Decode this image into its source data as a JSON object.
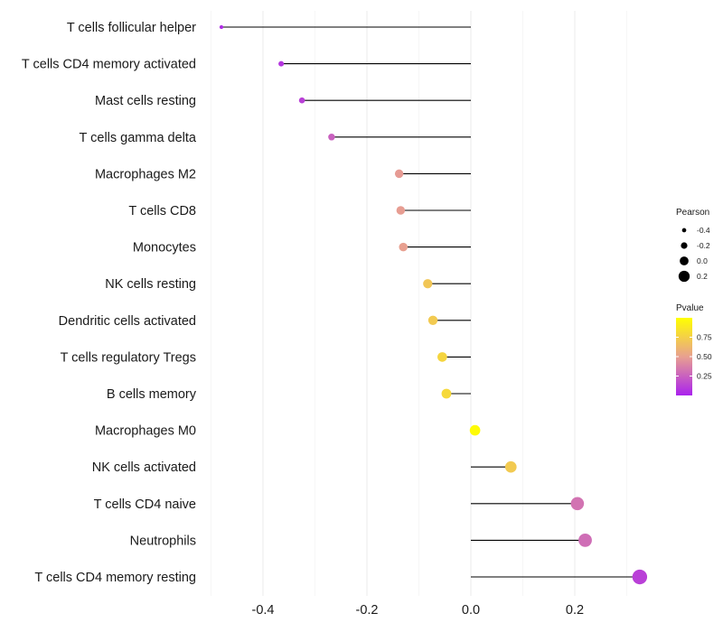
{
  "chart_data": {
    "type": "lollipop",
    "categories": [
      "T cells follicular helper",
      "T cells CD4 memory activated",
      "Mast cells resting",
      "T cells gamma delta",
      "Macrophages M2",
      "T cells CD8",
      "Monocytes",
      "NK cells resting",
      "Dendritic cells activated",
      "T cells regulatory  Tregs ",
      "B cells memory",
      "Macrophages M0",
      "NK cells activated",
      "T cells CD4 naive",
      "Neutrophils",
      "T cells CD4 memory resting"
    ],
    "values": [
      -0.48,
      -0.365,
      -0.325,
      -0.268,
      -0.138,
      -0.135,
      -0.13,
      -0.083,
      -0.073,
      -0.055,
      -0.047,
      0.008,
      0.077,
      0.205,
      0.22,
      0.325
    ],
    "pvalues": [
      0.05,
      0.08,
      0.12,
      0.25,
      0.48,
      0.49,
      0.5,
      0.7,
      0.72,
      0.78,
      0.8,
      0.98,
      0.72,
      0.32,
      0.3,
      0.12
    ],
    "xlim": [
      -0.5,
      0.35
    ],
    "xticks": [
      -0.4,
      -0.2,
      0.0,
      0.2
    ],
    "xtick_labels": [
      "-0.4",
      "-0.2",
      "0.0",
      "0.2"
    ],
    "xlabel": "",
    "ylabel": "",
    "legend": {
      "size_title": "Pearson",
      "size_values": [
        -0.4,
        -0.2,
        0.0,
        0.2
      ],
      "size_labels": [
        "-0.4",
        "-0.2",
        "0.0",
        "0.2"
      ],
      "color_title": "Pvalue",
      "color_ticks": [
        0.75,
        0.5,
        0.25
      ],
      "color_tick_labels": [
        "0.75",
        "0.50",
        "0.25"
      ],
      "color_range": [
        0.0,
        1.0
      ],
      "color_low": "#aa22ee",
      "color_mid": "#e8a090",
      "color_high": "#ffff00"
    },
    "segment_color": "#000000",
    "grid": true
  }
}
